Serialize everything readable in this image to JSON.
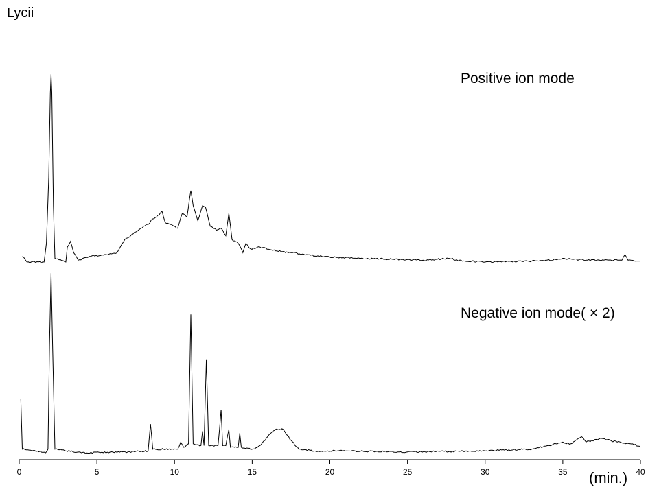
{
  "chart_data": {
    "type": "line",
    "title": "Lycii",
    "xlabel": "(min.)",
    "ylabel": "",
    "xlim": [
      0,
      40
    ],
    "x_ticks": [
      0,
      5,
      10,
      15,
      20,
      25,
      30,
      35,
      40
    ],
    "grid": false,
    "series": [
      {
        "name": "Positive ion mode",
        "points": [
          [
            0.2,
            0.03
          ],
          [
            0.5,
            0.0
          ],
          [
            1.6,
            0.0
          ],
          [
            1.75,
            0.1
          ],
          [
            1.9,
            0.45
          ],
          [
            2.0,
            0.9
          ],
          [
            2.05,
            1.0
          ],
          [
            2.1,
            0.9
          ],
          [
            2.2,
            0.3
          ],
          [
            2.3,
            0.02
          ],
          [
            3.0,
            0.0
          ],
          [
            3.1,
            0.08
          ],
          [
            3.3,
            0.11
          ],
          [
            3.5,
            0.05
          ],
          [
            3.8,
            0.01
          ],
          [
            4.5,
            0.03
          ],
          [
            5.5,
            0.04
          ],
          [
            6.3,
            0.05
          ],
          [
            6.8,
            0.12
          ],
          [
            7.5,
            0.16
          ],
          [
            8.0,
            0.19
          ],
          [
            8.3,
            0.2
          ],
          [
            8.6,
            0.23
          ],
          [
            9.0,
            0.25
          ],
          [
            9.2,
            0.27
          ],
          [
            9.4,
            0.21
          ],
          [
            9.8,
            0.2
          ],
          [
            10.2,
            0.18
          ],
          [
            10.5,
            0.26
          ],
          [
            10.8,
            0.24
          ],
          [
            11.05,
            0.38
          ],
          [
            11.2,
            0.3
          ],
          [
            11.5,
            0.22
          ],
          [
            11.8,
            0.3
          ],
          [
            12.0,
            0.29
          ],
          [
            12.3,
            0.19
          ],
          [
            12.7,
            0.17
          ],
          [
            13.0,
            0.18
          ],
          [
            13.3,
            0.14
          ],
          [
            13.5,
            0.26
          ],
          [
            13.7,
            0.12
          ],
          [
            14.1,
            0.1
          ],
          [
            14.4,
            0.05
          ],
          [
            14.6,
            0.1
          ],
          [
            14.9,
            0.07
          ],
          [
            15.5,
            0.08
          ],
          [
            16.5,
            0.06
          ],
          [
            17.5,
            0.05
          ],
          [
            18.5,
            0.04
          ],
          [
            19.5,
            0.03
          ],
          [
            20.5,
            0.025
          ],
          [
            22.0,
            0.02
          ],
          [
            24.0,
            0.015
          ],
          [
            26.0,
            0.01
          ],
          [
            27.9,
            0.02
          ],
          [
            28.0,
            0.01
          ],
          [
            30.0,
            0.0
          ],
          [
            33.0,
            0.005
          ],
          [
            34.8,
            0.015
          ],
          [
            35.0,
            0.02
          ],
          [
            36.5,
            0.01
          ],
          [
            38.8,
            0.01
          ],
          [
            39.0,
            0.04
          ],
          [
            39.2,
            0.01
          ],
          [
            40.0,
            0.005
          ]
        ]
      },
      {
        "name": "Negative ion mode( × 2)",
        "points": [
          [
            0.1,
            0.3
          ],
          [
            0.2,
            0.02
          ],
          [
            1.7,
            0.0
          ],
          [
            1.85,
            0.02
          ],
          [
            1.95,
            0.6
          ],
          [
            2.05,
            1.0
          ],
          [
            2.15,
            0.6
          ],
          [
            2.3,
            0.02
          ],
          [
            4.0,
            0.0
          ],
          [
            7.0,
            0.005
          ],
          [
            8.3,
            0.01
          ],
          [
            8.45,
            0.16
          ],
          [
            8.6,
            0.02
          ],
          [
            9.3,
            0.02
          ],
          [
            10.2,
            0.02
          ],
          [
            10.4,
            0.06
          ],
          [
            10.6,
            0.03
          ],
          [
            10.9,
            0.05
          ],
          [
            11.05,
            0.77
          ],
          [
            11.2,
            0.05
          ],
          [
            11.7,
            0.04
          ],
          [
            11.8,
            0.12
          ],
          [
            11.9,
            0.04
          ],
          [
            12.05,
            0.52
          ],
          [
            12.2,
            0.04
          ],
          [
            12.8,
            0.04
          ],
          [
            13.0,
            0.24
          ],
          [
            13.1,
            0.04
          ],
          [
            13.3,
            0.04
          ],
          [
            13.5,
            0.13
          ],
          [
            13.6,
            0.03
          ],
          [
            14.1,
            0.03
          ],
          [
            14.2,
            0.11
          ],
          [
            14.3,
            0.03
          ],
          [
            15.0,
            0.02
          ],
          [
            15.5,
            0.04
          ],
          [
            16.0,
            0.09
          ],
          [
            16.5,
            0.13
          ],
          [
            17.0,
            0.13
          ],
          [
            17.5,
            0.07
          ],
          [
            18.0,
            0.02
          ],
          [
            19.0,
            0.01
          ],
          [
            21.0,
            0.01
          ],
          [
            25.0,
            0.005
          ],
          [
            30.0,
            0.01
          ],
          [
            32.6,
            0.02
          ],
          [
            33.0,
            0.02
          ],
          [
            34.0,
            0.04
          ],
          [
            35.0,
            0.06
          ],
          [
            35.5,
            0.05
          ],
          [
            36.2,
            0.09
          ],
          [
            36.5,
            0.06
          ],
          [
            37.5,
            0.08
          ],
          [
            38.5,
            0.06
          ],
          [
            39.5,
            0.05
          ],
          [
            40.0,
            0.03
          ]
        ]
      }
    ]
  }
}
